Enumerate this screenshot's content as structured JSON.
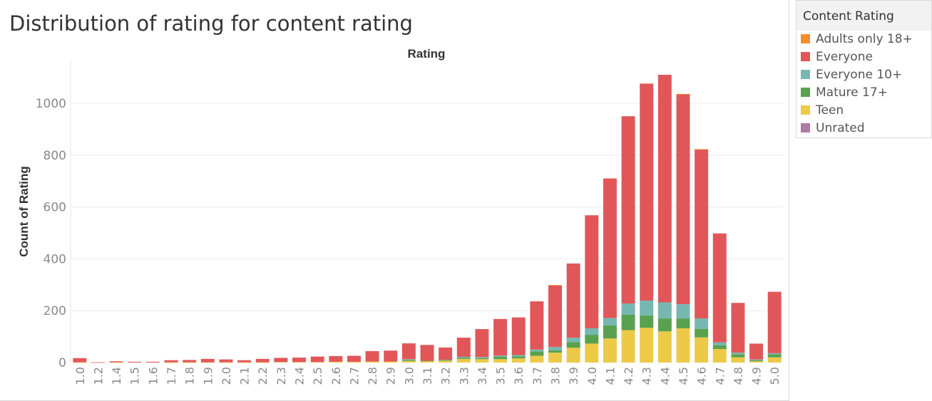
{
  "chart_data": {
    "type": "bar",
    "stacked": true,
    "title": "Distribution of rating for content rating",
    "xlabel": "Rating",
    "ylabel": "Count of Rating",
    "ylim": [
      0,
      1150
    ],
    "yticks": [
      0,
      200,
      400,
      600,
      800,
      1000
    ],
    "grid": true,
    "legend_position": "right",
    "legend_title": "Content Rating",
    "categories": [
      "1.0",
      "1.2",
      "1.4",
      "1.5",
      "1.6",
      "1.7",
      "1.8",
      "1.9",
      "2.0",
      "2.1",
      "2.2",
      "2.3",
      "2.4",
      "2.5",
      "2.6",
      "2.7",
      "2.8",
      "2.9",
      "3.0",
      "3.1",
      "3.2",
      "3.3",
      "3.4",
      "3.5",
      "3.6",
      "3.7",
      "3.8",
      "3.9",
      "4.0",
      "4.1",
      "4.2",
      "4.3",
      "4.4",
      "4.5",
      "4.6",
      "4.7",
      "4.8",
      "4.9",
      "5.0"
    ],
    "series": [
      {
        "name": "Teen",
        "color": "#edc948",
        "values": [
          1,
          0,
          1,
          0,
          0,
          1,
          1,
          1,
          1,
          1,
          1,
          2,
          2,
          2,
          3,
          3,
          4,
          4,
          6,
          5,
          7,
          14,
          13,
          13,
          16,
          26,
          38,
          57,
          73,
          93,
          125,
          134,
          120,
          132,
          97,
          52,
          20,
          5,
          20
        ]
      },
      {
        "name": "Mature 17+",
        "color": "#59a14f",
        "values": [
          0,
          0,
          0,
          0,
          0,
          0,
          0,
          0,
          0,
          0,
          0,
          0,
          0,
          0,
          0,
          0,
          0,
          0,
          4,
          2,
          3,
          4,
          4,
          9,
          8,
          17,
          9,
          22,
          34,
          50,
          60,
          48,
          50,
          38,
          33,
          14,
          12,
          4,
          12
        ]
      },
      {
        "name": "Everyone 10+",
        "color": "#76b7b2",
        "values": [
          0,
          0,
          0,
          0,
          0,
          0,
          0,
          0,
          0,
          0,
          0,
          0,
          0,
          0,
          0,
          0,
          0,
          0,
          3,
          0,
          1,
          4,
          4,
          5,
          5,
          7,
          13,
          17,
          25,
          29,
          43,
          57,
          62,
          55,
          40,
          12,
          6,
          3,
          4
        ]
      },
      {
        "name": "Everyone",
        "color": "#e15759",
        "values": [
          16,
          1,
          4,
          3,
          3,
          8,
          9,
          13,
          11,
          8,
          13,
          16,
          17,
          21,
          22,
          23,
          40,
          42,
          61,
          61,
          47,
          74,
          108,
          141,
          145,
          186,
          238,
          286,
          436,
          538,
          722,
          837,
          878,
          810,
          652,
          420,
          192,
          61,
          237
        ]
      },
      {
        "name": "Adults only 18+",
        "color": "#f28e2b",
        "values": [
          0,
          0,
          0,
          0,
          0,
          0,
          0,
          0,
          0,
          0,
          0,
          0,
          0,
          0,
          0,
          0,
          0,
          0,
          0,
          0,
          0,
          0,
          0,
          0,
          0,
          0,
          1,
          0,
          0,
          0,
          0,
          0,
          0,
          1,
          1,
          0,
          0,
          0,
          0
        ]
      },
      {
        "name": "Unrated",
        "color": "#b07aa1",
        "values": [
          0,
          0,
          0,
          0,
          0,
          0,
          0,
          0,
          0,
          0,
          0,
          0,
          0,
          0,
          0,
          0,
          0,
          0,
          0,
          0,
          0,
          0,
          0,
          0,
          0,
          0,
          0,
          0,
          0,
          0,
          0,
          0,
          0,
          0,
          0,
          0,
          0,
          0,
          0
        ]
      }
    ]
  },
  "legend": {
    "title": "Content Rating",
    "items": [
      {
        "label": "Adults only 18+",
        "color": "#f28e2b"
      },
      {
        "label": "Everyone",
        "color": "#e15759"
      },
      {
        "label": "Everyone 10+",
        "color": "#76b7b2"
      },
      {
        "label": "Mature 17+",
        "color": "#59a14f"
      },
      {
        "label": "Teen",
        "color": "#edc948"
      },
      {
        "label": "Unrated",
        "color": "#b07aa1"
      }
    ]
  }
}
